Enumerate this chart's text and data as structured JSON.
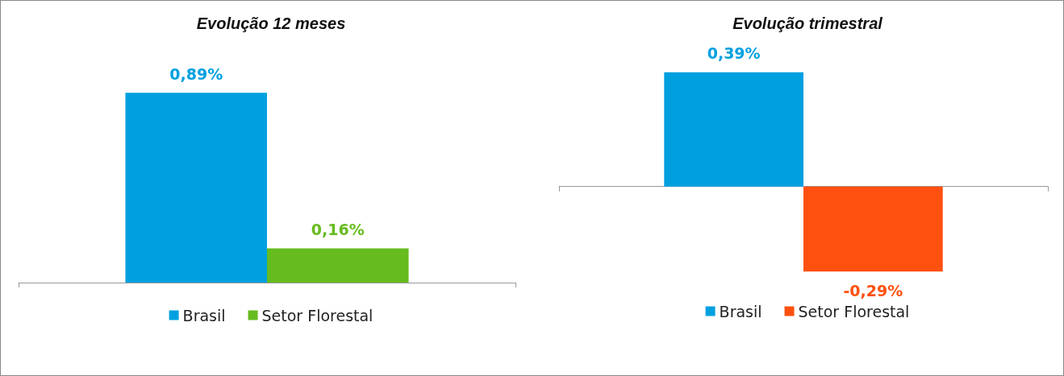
{
  "chart_data": [
    {
      "type": "bar",
      "title": "Evolução 12 meses",
      "categories": [
        null
      ],
      "legend": "bottom",
      "series": [
        {
          "name": "Brasil",
          "color": "#00a0e0",
          "values": [
            0.89
          ],
          "value_labels": [
            "0,89%"
          ]
        },
        {
          "name": "Setor Florestal",
          "color": "#66bb1e",
          "values": [
            0.16
          ],
          "value_labels": [
            "0,16%"
          ]
        }
      ]
    },
    {
      "type": "bar",
      "title": "Evolução trimestral",
      "categories": [
        null
      ],
      "legend": "bottom",
      "series": [
        {
          "name": "Brasil",
          "color": "#00a0e0",
          "values": [
            0.39
          ],
          "value_labels": [
            "0,39%"
          ]
        },
        {
          "name": "Setor Florestal",
          "color": "#ff5010",
          "values": [
            -0.29
          ],
          "value_labels": [
            "-0,29%"
          ]
        }
      ]
    }
  ]
}
